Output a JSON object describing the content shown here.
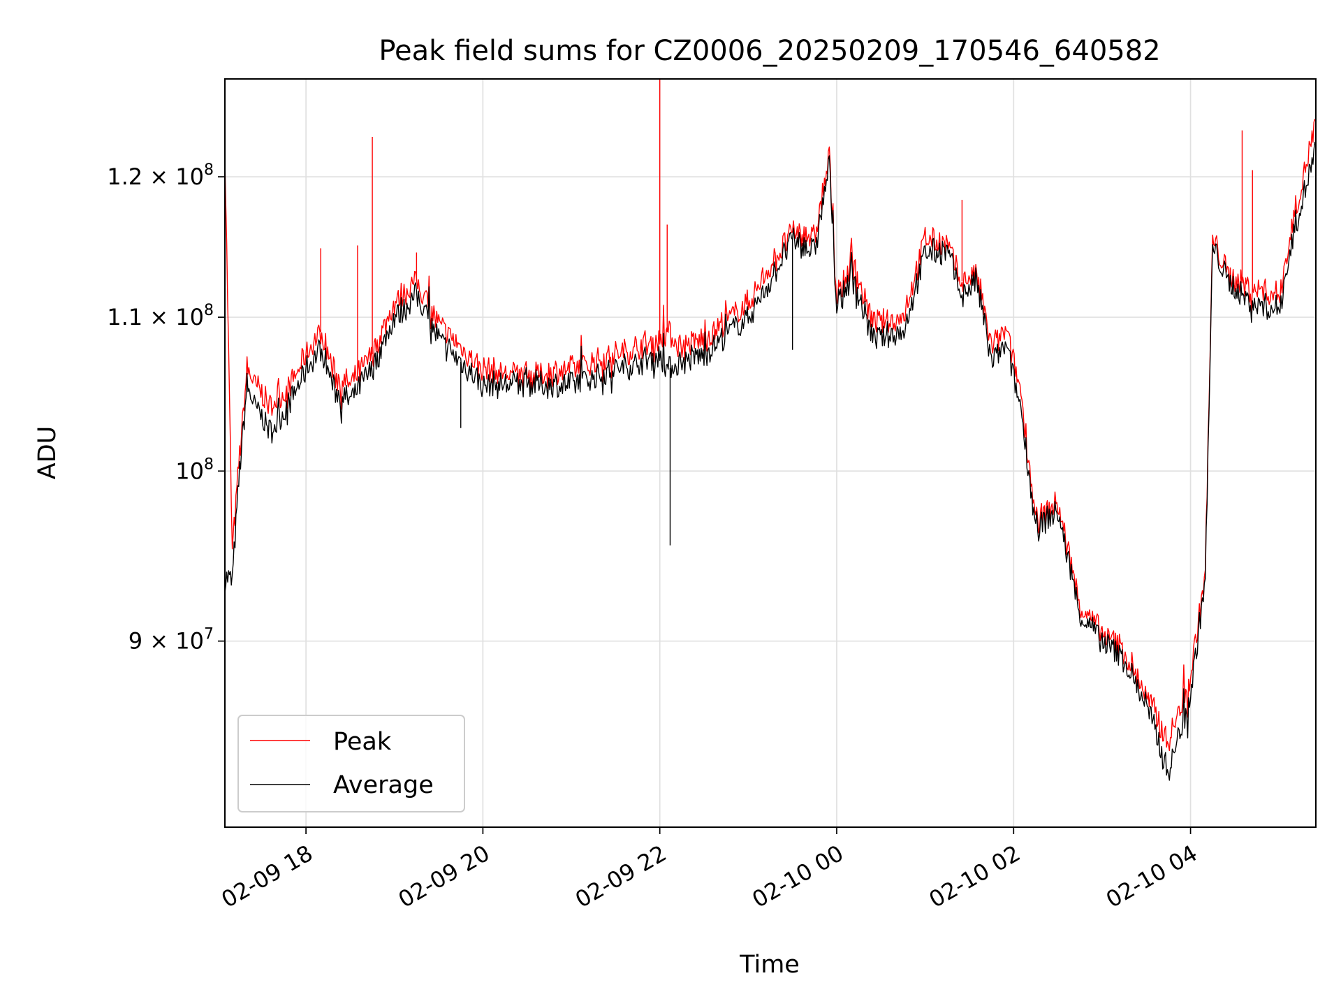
{
  "chart_data": {
    "type": "line",
    "title": "Peak field sums for CZ0006_20250209_170546_640582",
    "xlabel": "Time",
    "ylabel": "ADU",
    "y_scale": "log",
    "xlim": [
      "2025-02-09 17:05",
      "2025-02-10 05:25"
    ],
    "ylim": [
      80200000,
      127500000
    ],
    "grid": true,
    "legend_position": "lower-left",
    "x_ticks": [
      {
        "value": "2025-02-09 18:00",
        "label": "02-09 18"
      },
      {
        "value": "2025-02-09 20:00",
        "label": "02-09 20"
      },
      {
        "value": "2025-02-09 22:00",
        "label": "02-09 22"
      },
      {
        "value": "2025-02-10 00:00",
        "label": "02-10 00"
      },
      {
        "value": "2025-02-10 02:00",
        "label": "02-10 02"
      },
      {
        "value": "2025-02-10 04:00",
        "label": "02-10 04"
      }
    ],
    "y_ticks": [
      {
        "value": 90000000,
        "label": "9 × 10",
        "exp": "7"
      },
      {
        "value": 100000000,
        "label": "10",
        "exp": "8"
      },
      {
        "value": 110000000,
        "label": "1.1 × 10",
        "exp": "8"
      },
      {
        "value": 120000000,
        "label": "1.2 × 10",
        "exp": "8"
      }
    ],
    "series": [
      {
        "name": "Peak",
        "color": "#ff0000",
        "x": [
          "2025-02-09 17:05",
          "2025-02-09 17:10",
          "2025-02-09 17:15",
          "2025-02-09 17:20",
          "2025-02-09 17:25",
          "2025-02-09 17:30",
          "2025-02-09 17:35",
          "2025-02-09 17:40",
          "2025-02-09 17:50",
          "2025-02-09 18:00",
          "2025-02-09 18:10",
          "2025-02-09 18:20",
          "2025-02-09 18:30",
          "2025-02-09 18:45",
          "2025-02-09 19:00",
          "2025-02-09 19:15",
          "2025-02-09 19:30",
          "2025-02-09 19:45",
          "2025-02-09 20:00",
          "2025-02-09 20:30",
          "2025-02-09 21:00",
          "2025-02-09 21:30",
          "2025-02-09 22:00",
          "2025-02-09 22:05",
          "2025-02-09 22:15",
          "2025-02-09 22:30",
          "2025-02-09 23:00",
          "2025-02-09 23:15",
          "2025-02-09 23:30",
          "2025-02-09 23:45",
          "2025-02-09 23:55",
          "2025-02-10 00:00",
          "2025-02-10 00:10",
          "2025-02-10 00:25",
          "2025-02-10 00:45",
          "2025-02-10 01:00",
          "2025-02-10 01:15",
          "2025-02-10 01:25",
          "2025-02-10 01:35",
          "2025-02-10 01:45",
          "2025-02-10 01:55",
          "2025-02-10 02:05",
          "2025-02-10 02:15",
          "2025-02-10 02:30",
          "2025-02-10 02:45",
          "2025-02-10 03:00",
          "2025-02-10 03:15",
          "2025-02-10 03:30",
          "2025-02-10 03:45",
          "2025-02-10 04:00",
          "2025-02-10 04:10",
          "2025-02-10 04:15",
          "2025-02-10 04:25",
          "2025-02-10 04:40",
          "2025-02-10 05:00",
          "2025-02-10 05:10",
          "2025-02-10 05:25"
        ],
        "y": [
          122000000,
          95000000,
          101000000,
          106500000,
          105500000,
          105000000,
          104000000,
          104500000,
          105500000,
          107500000,
          109000000,
          106000000,
          105500000,
          107500000,
          111000000,
          112500000,
          109500000,
          108000000,
          106500000,
          106000000,
          106500000,
          107500000,
          108500000,
          109000000,
          108000000,
          108500000,
          111000000,
          113500000,
          116000000,
          115500000,
          121500000,
          111000000,
          114000000,
          109500000,
          110000000,
          115500000,
          115000000,
          112500000,
          113000000,
          108000000,
          109000000,
          105000000,
          97000000,
          98000000,
          92000000,
          90500000,
          89500000,
          87000000,
          84500000,
          88000000,
          94000000,
          115500000,
          113000000,
          112000000,
          111500000,
          117000000,
          124000000
        ]
      },
      {
        "name": "Average",
        "color": "#000000",
        "x": [
          "2025-02-09 17:05",
          "2025-02-09 17:10",
          "2025-02-09 17:15",
          "2025-02-09 17:20",
          "2025-02-09 17:25",
          "2025-02-09 17:30",
          "2025-02-09 17:35",
          "2025-02-09 17:40",
          "2025-02-09 17:50",
          "2025-02-09 18:00",
          "2025-02-09 18:10",
          "2025-02-09 18:20",
          "2025-02-09 18:30",
          "2025-02-09 18:45",
          "2025-02-09 19:00",
          "2025-02-09 19:15",
          "2025-02-09 19:30",
          "2025-02-09 19:45",
          "2025-02-09 20:00",
          "2025-02-09 20:30",
          "2025-02-09 21:00",
          "2025-02-09 21:30",
          "2025-02-09 22:00",
          "2025-02-09 22:05",
          "2025-02-09 22:15",
          "2025-02-09 22:30",
          "2025-02-09 23:00",
          "2025-02-09 23:15",
          "2025-02-09 23:30",
          "2025-02-09 23:45",
          "2025-02-09 23:55",
          "2025-02-10 00:00",
          "2025-02-10 00:10",
          "2025-02-10 00:25",
          "2025-02-10 00:45",
          "2025-02-10 01:00",
          "2025-02-10 01:15",
          "2025-02-10 01:25",
          "2025-02-10 01:35",
          "2025-02-10 01:45",
          "2025-02-10 01:55",
          "2025-02-10 02:05",
          "2025-02-10 02:15",
          "2025-02-10 02:30",
          "2025-02-10 02:45",
          "2025-02-10 03:00",
          "2025-02-10 03:15",
          "2025-02-10 03:30",
          "2025-02-10 03:45",
          "2025-02-10 04:00",
          "2025-02-10 04:10",
          "2025-02-10 04:15",
          "2025-02-10 04:25",
          "2025-02-10 04:40",
          "2025-02-10 05:00",
          "2025-02-10 05:10",
          "2025-02-10 05:25"
        ],
        "y": [
          93500000,
          93500000,
          100000000,
          105500000,
          104000000,
          103500000,
          102500000,
          103000000,
          104500000,
          106500000,
          108000000,
          105000000,
          104500000,
          106500000,
          110000000,
          111500000,
          108500000,
          107000000,
          105500000,
          105500000,
          105500000,
          106500000,
          107500000,
          106500000,
          107000000,
          107500000,
          110000000,
          112500000,
          115500000,
          114500000,
          121000000,
          110500000,
          113000000,
          108500000,
          109000000,
          114500000,
          114500000,
          111500000,
          112500000,
          107000000,
          108000000,
          104000000,
          96500000,
          97500000,
          91500000,
          90000000,
          89000000,
          86500000,
          83000000,
          87000000,
          93500000,
          115000000,
          112500000,
          111000000,
          110500000,
          116000000,
          122000000
        ]
      }
    ],
    "spikes": [
      {
        "series": "Peak",
        "x": "2025-02-09 18:10",
        "y": 114800000
      },
      {
        "series": "Peak",
        "x": "2025-02-09 18:35",
        "y": 115000000
      },
      {
        "series": "Peak",
        "x": "2025-02-09 18:45",
        "y": 123000000
      },
      {
        "series": "Peak",
        "x": "2025-02-09 19:15",
        "y": 114500000
      },
      {
        "series": "Peak",
        "x": "2025-02-09 22:00",
        "y": 127500000
      },
      {
        "series": "Peak",
        "x": "2025-02-09 22:05",
        "y": 116500000
      },
      {
        "series": "Peak",
        "x": "2025-02-10 01:25",
        "y": 118300000
      },
      {
        "series": "Peak",
        "x": "2025-02-10 04:35",
        "y": 123500000
      },
      {
        "series": "Peak",
        "x": "2025-02-10 04:42",
        "y": 120500000
      },
      {
        "series": "Average",
        "x": "2025-02-09 19:45",
        "y": 102700000
      },
      {
        "series": "Average",
        "x": "2025-02-09 22:07",
        "y": 95500000
      },
      {
        "series": "Average",
        "x": "2025-02-09 23:30",
        "y": 107800000
      }
    ]
  }
}
